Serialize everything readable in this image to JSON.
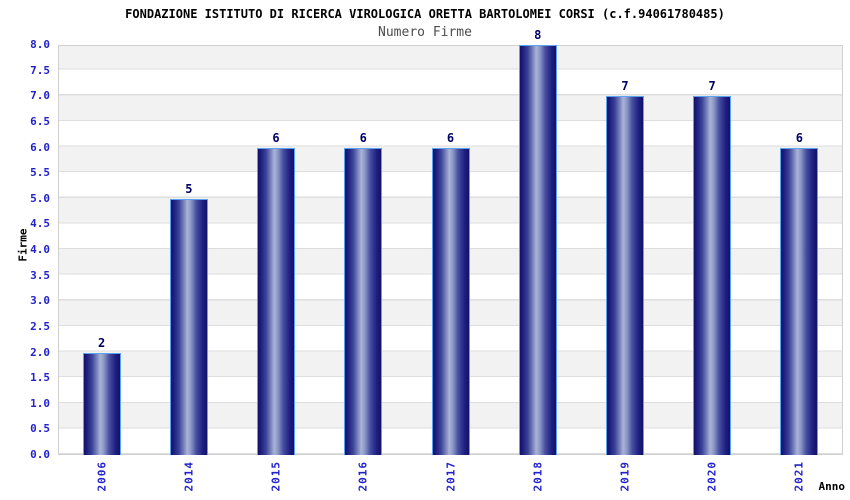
{
  "chart_data": {
    "type": "bar",
    "title": "FONDAZIONE ISTITUTO DI RICERCA VIROLOGICA ORETTA BARTOLOMEI CORSI (c.f.94061780485)",
    "subtitle": "Numero Firme",
    "categories": [
      "2006",
      "2014",
      "2015",
      "2016",
      "2017",
      "2018",
      "2019",
      "2020",
      "2021"
    ],
    "values": [
      2,
      5,
      6,
      6,
      6,
      8,
      7,
      7,
      6
    ],
    "bar_value_labels": [
      "2",
      "5",
      "6",
      "6",
      "6",
      "8",
      "7",
      "7",
      "6"
    ],
    "xlabel": "Anno",
    "ylabel": "Firme",
    "ylim": [
      0,
      8
    ],
    "ytick_step": 0.5,
    "ytick_decimals": 1,
    "grid": "horizontal",
    "background_bands": "alternating",
    "legend": "none",
    "colors": {
      "axis_text": "#2222cc",
      "bar_dark": "#121268",
      "bar_mid": "#3b4296",
      "bar_light": "#a9b3d8",
      "bar_border": "#5ba3f0",
      "value_label": "#000066",
      "band_gray": "#f2f2f2",
      "gridline": "#dedede",
      "plot_border": "#d0d0d0",
      "subtitle_text": "#4d4d4d",
      "title_text": "#000000"
    }
  }
}
